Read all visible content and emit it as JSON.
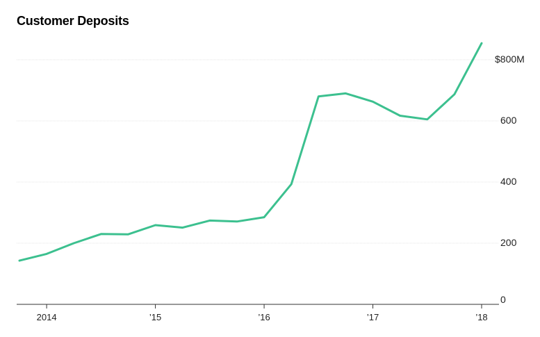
{
  "chart_data": {
    "type": "line",
    "title": "Customer Deposits",
    "xlabel": "",
    "ylabel": "",
    "y_unit": "$M",
    "ylim": [
      0,
      900
    ],
    "y_ticks": [
      {
        "value": 0,
        "label": "0"
      },
      {
        "value": 200,
        "label": "200"
      },
      {
        "value": 400,
        "label": "400"
      },
      {
        "value": 600,
        "label": "600"
      },
      {
        "value": 800,
        "label": "$800M"
      }
    ],
    "x_ticks": [
      {
        "value": "2014-01",
        "label": "2014"
      },
      {
        "value": "2015-01",
        "label": "’15"
      },
      {
        "value": "2016-01",
        "label": "’16"
      },
      {
        "value": "2017-01",
        "label": "’17"
      },
      {
        "value": "2018-01",
        "label": "’18"
      }
    ],
    "xlim": [
      "2013-10",
      "2018-03"
    ],
    "grid": true,
    "legend": "none",
    "color": "#3cc08f",
    "series": [
      {
        "x": [
          "2013-10",
          "2014-01",
          "2014-04",
          "2014-07",
          "2014-10",
          "2015-01",
          "2015-04",
          "2015-07",
          "2015-10",
          "2016-01",
          "2016-04",
          "2016-07",
          "2016-10",
          "2017-01",
          "2017-04",
          "2017-07",
          "2017-10",
          "2018-01"
        ],
        "values": [
          143,
          165,
          200,
          230,
          229,
          259,
          251,
          274,
          271,
          285,
          393,
          680,
          690,
          663,
          617,
          605,
          687,
          854
        ]
      }
    ]
  }
}
